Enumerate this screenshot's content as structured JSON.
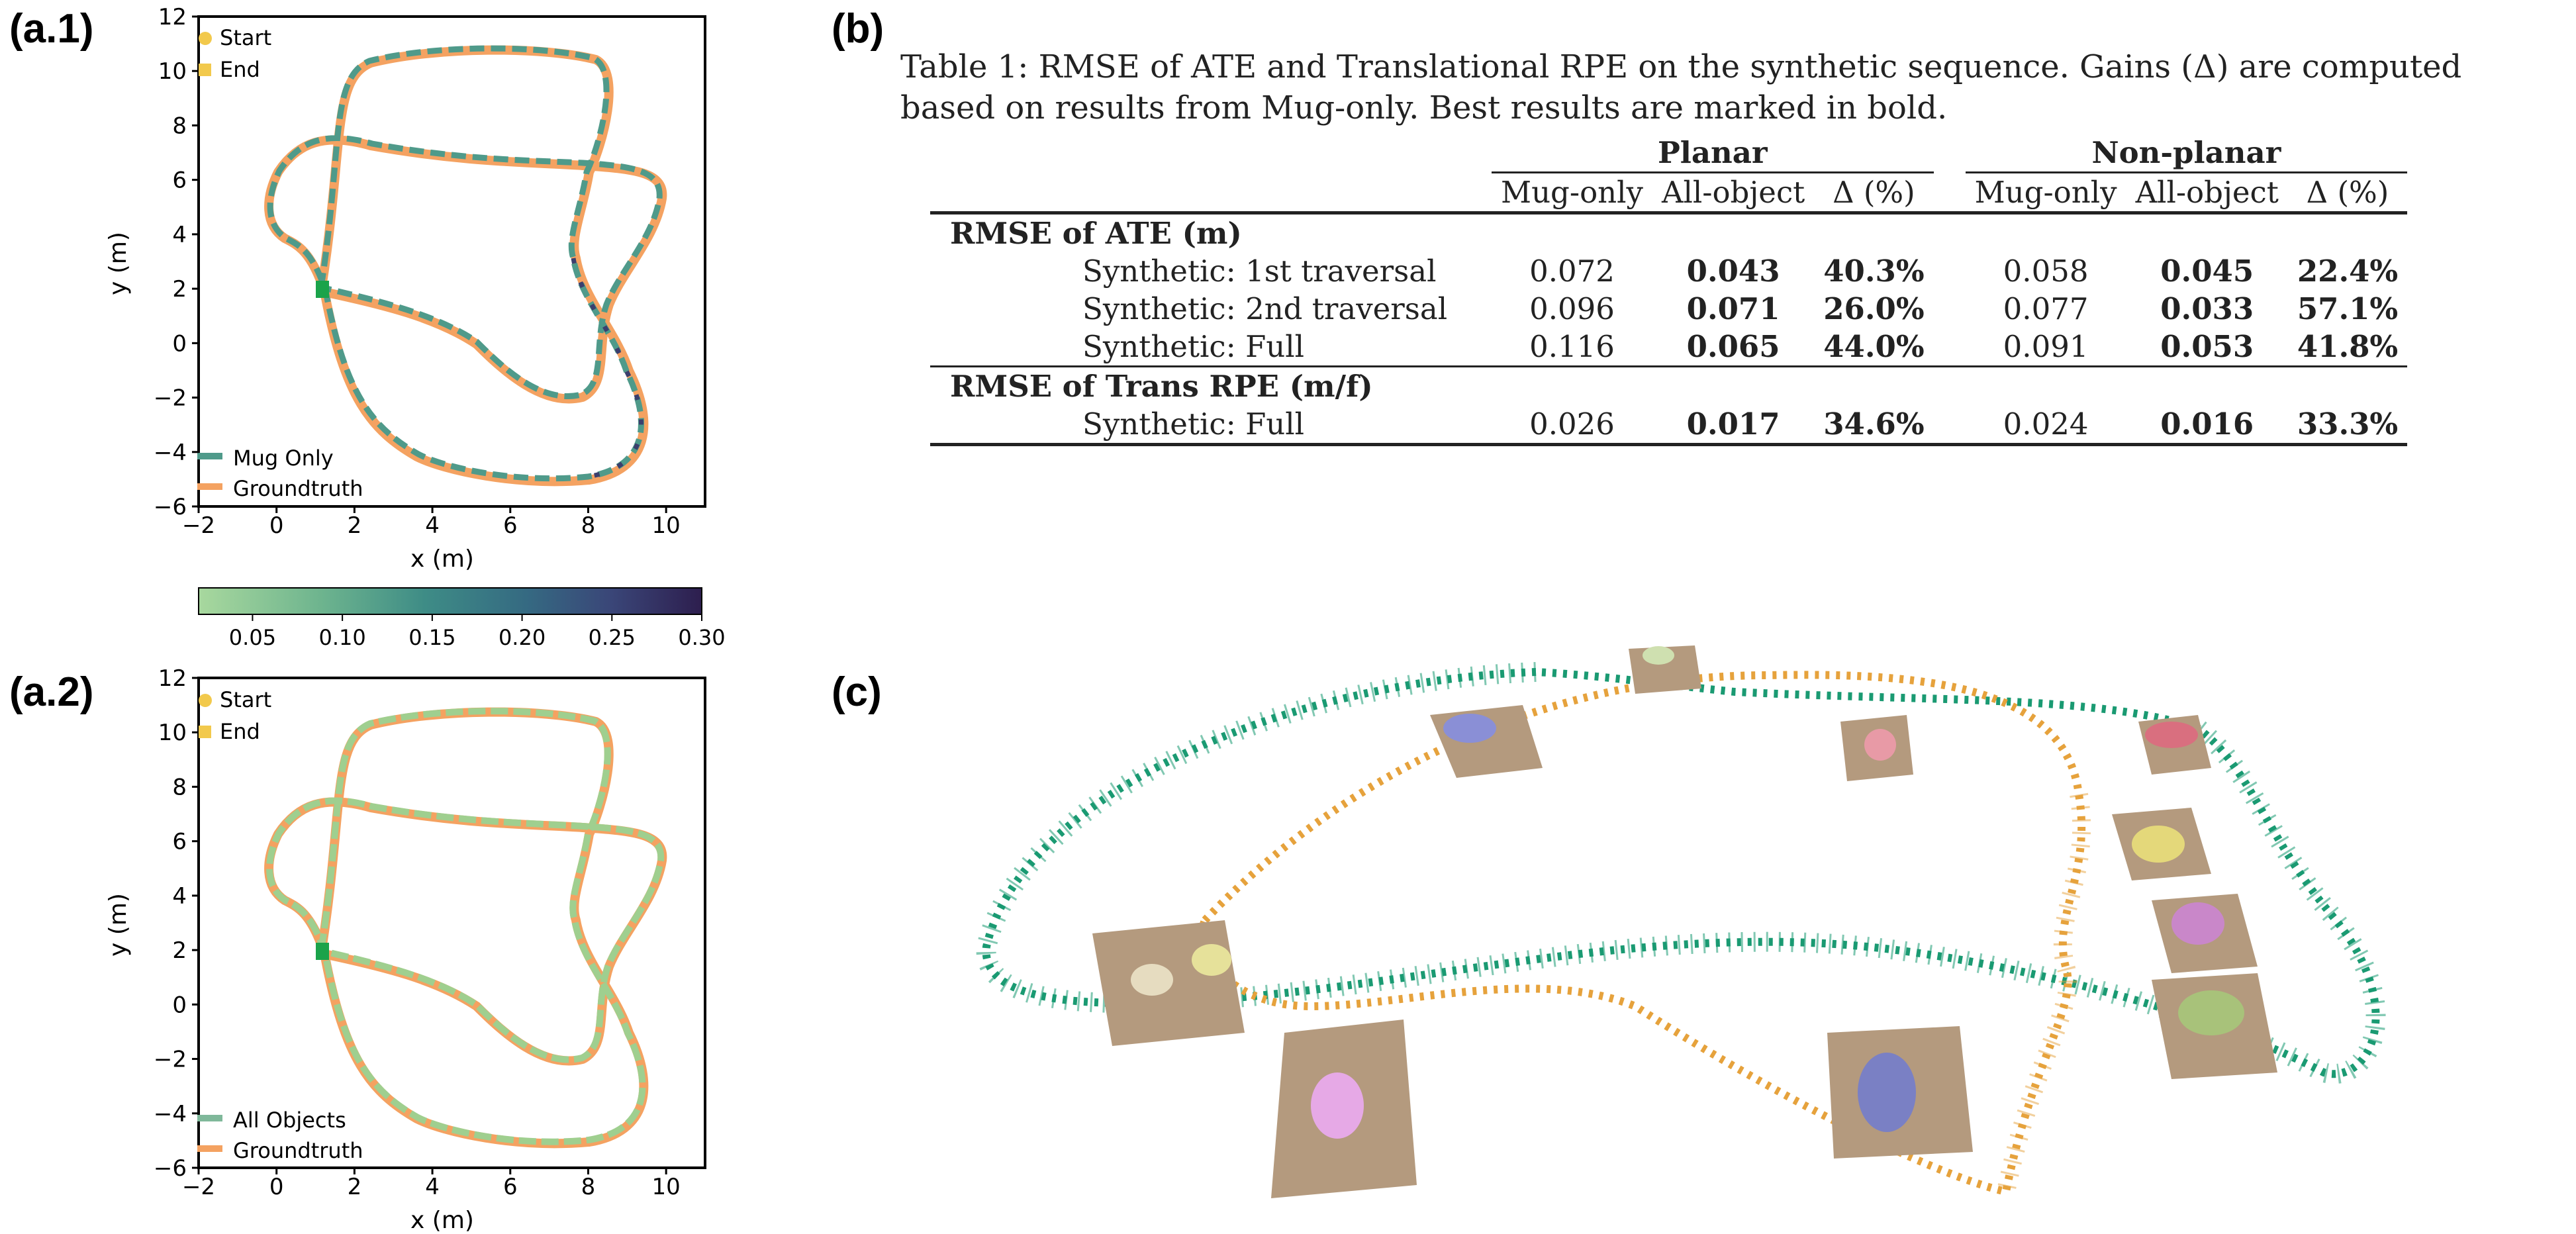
{
  "panels": {
    "a1": "(a.1)",
    "a2": "(a.2)",
    "b": "(b)",
    "c": "(c)"
  },
  "plot_a1": {
    "legend_markers": [
      "Start",
      "End"
    ],
    "legend_lines": [
      "Mug Only",
      "Groundtruth"
    ],
    "xlabel": "x (m)",
    "ylabel": "y (m)",
    "xticks": [
      "−2",
      "0",
      "2",
      "4",
      "6",
      "8",
      "10"
    ],
    "yticks": [
      "12",
      "10",
      "8",
      "6",
      "4",
      "2",
      "0",
      "−2",
      "−4",
      "−6"
    ]
  },
  "plot_a2": {
    "legend_markers": [
      "Start",
      "End"
    ],
    "legend_lines": [
      "All Objects",
      "Groundtruth"
    ],
    "xlabel": "x (m)",
    "ylabel": "y (m)",
    "xticks": [
      "−2",
      "0",
      "2",
      "4",
      "6",
      "8",
      "10"
    ],
    "yticks": [
      "12",
      "10",
      "8",
      "6",
      "4",
      "2",
      "0",
      "−2",
      "−4",
      "−6"
    ]
  },
  "colorbar": {
    "ticks": [
      "0.05",
      "0.10",
      "0.15",
      "0.20",
      "0.25",
      "0.30"
    ],
    "range": [
      0.02,
      0.3
    ]
  },
  "colors": {
    "groundtruth": "#f4a261",
    "mug_only": "#4f9a8a",
    "all_objects": "#9fcf8f",
    "start_end": "#f2c94c",
    "camera_teal": "#1a9a72",
    "camera_orange": "#e6a23c",
    "table_brown": "#b49a7e"
  },
  "table": {
    "caption": "Table 1: RMSE of ATE and Translational RPE on the synthetic sequence. Gains (Δ) are computed based on results from Mug-only. Best results are marked in bold.",
    "groups": [
      "Planar",
      "Non-planar"
    ],
    "columns": [
      "Mug-only",
      "All-object",
      "Δ (%)",
      "Mug-only",
      "All-object",
      "Δ (%)"
    ],
    "sections": [
      {
        "title": "RMSE of ATE (m)",
        "rows": [
          {
            "label": "Synthetic: 1st traversal",
            "values": [
              "0.072",
              "0.043",
              "40.3%",
              "0.058",
              "0.045",
              "22.4%"
            ]
          },
          {
            "label": "Synthetic: 2nd traversal",
            "values": [
              "0.096",
              "0.071",
              "26.0%",
              "0.077",
              "0.033",
              "57.1%"
            ]
          },
          {
            "label": "Synthetic: Full",
            "values": [
              "0.116",
              "0.065",
              "44.0%",
              "0.091",
              "0.053",
              "41.8%"
            ]
          }
        ]
      },
      {
        "title": "RMSE of Trans RPE (m/f)",
        "rows": [
          {
            "label": "Synthetic: Full",
            "values": [
              "0.026",
              "0.017",
              "34.6%",
              "0.024",
              "0.016",
              "33.3%"
            ]
          }
        ]
      }
    ]
  }
}
